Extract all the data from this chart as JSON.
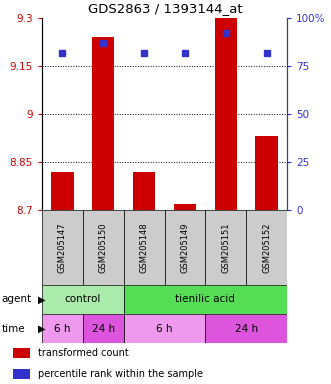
{
  "title": "GDS2863 / 1393144_at",
  "samples": [
    "GSM205147",
    "GSM205150",
    "GSM205148",
    "GSM205149",
    "GSM205151",
    "GSM205152"
  ],
  "bar_values": [
    8.82,
    9.24,
    8.82,
    8.72,
    9.3,
    8.93
  ],
  "percentile_values": [
    82,
    87,
    82,
    82,
    92,
    82
  ],
  "ylim_left": [
    8.7,
    9.3
  ],
  "ylim_right": [
    0,
    100
  ],
  "yticks_left": [
    8.7,
    8.85,
    9.0,
    9.15,
    9.3
  ],
  "ytick_labels_left": [
    "8.7",
    "8.85",
    "9",
    "9.15",
    "9.3"
  ],
  "yticks_right": [
    0,
    25,
    50,
    75,
    100
  ],
  "ytick_labels_right": [
    "0",
    "25",
    "50",
    "75",
    "100%"
  ],
  "bar_color": "#cc0000",
  "dot_color": "#3333cc",
  "agent_groups": [
    {
      "label": "control",
      "start": 0,
      "end": 2,
      "color": "#aaeaaa"
    },
    {
      "label": "tienilic acid",
      "start": 2,
      "end": 6,
      "color": "#55dd55"
    }
  ],
  "time_groups": [
    {
      "label": "6 h",
      "start": 0,
      "end": 1,
      "color": "#ee99ee"
    },
    {
      "label": "24 h",
      "start": 1,
      "end": 2,
      "color": "#dd55dd"
    },
    {
      "label": "6 h",
      "start": 2,
      "end": 4,
      "color": "#ee99ee"
    },
    {
      "label": "24 h",
      "start": 4,
      "end": 6,
      "color": "#dd55dd"
    }
  ],
  "legend_items": [
    {
      "label": "transformed count",
      "color": "#cc0000"
    },
    {
      "label": "percentile rank within the sample",
      "color": "#3333cc"
    }
  ],
  "left_axis_color": "#cc0000",
  "right_axis_color": "#3333cc",
  "label_row_bg": "#cccccc",
  "bg_color": "#ffffff"
}
